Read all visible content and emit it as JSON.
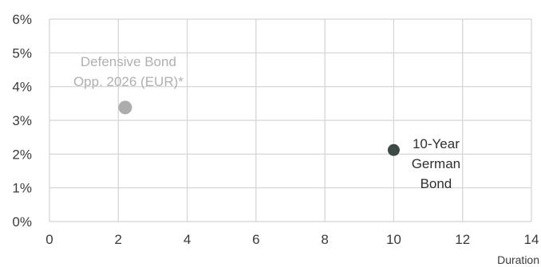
{
  "chart_data": {
    "type": "scatter",
    "xlabel": "Duration",
    "ylabel": "",
    "xlim": [
      0,
      14
    ],
    "ylim": [
      0,
      6
    ],
    "x_ticks": [
      0,
      2,
      4,
      6,
      8,
      10,
      12,
      14
    ],
    "y_ticks": [
      0,
      1,
      2,
      3,
      4,
      5,
      6
    ],
    "y_tick_labels": [
      "0%",
      "1%",
      "2%",
      "3%",
      "4%",
      "5%",
      "6%"
    ],
    "grid": true,
    "points": [
      {
        "label_lines": [
          "Defensive Bond",
          "Opp. 2026 (EUR)*"
        ],
        "x": 2.2,
        "y": 3.38,
        "color": "#adadad",
        "label_color": "#b0b0b0"
      },
      {
        "label_lines": [
          "10-Year",
          "German",
          "Bond"
        ],
        "x": 10.0,
        "y": 2.12,
        "color": "#3c4a45",
        "label_color": "#2f2f2f"
      }
    ]
  }
}
